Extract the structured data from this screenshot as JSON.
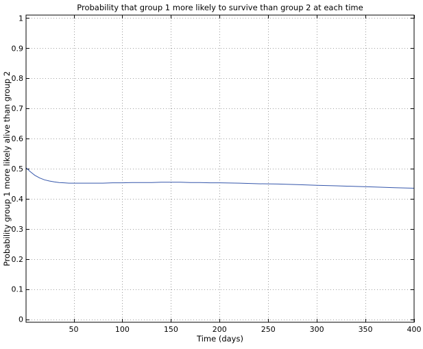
{
  "chart_data": {
    "type": "line",
    "title": "Probability that group 1 more likely to survive than group 2 at each time",
    "xlabel": "Time (days)",
    "ylabel": "Probability group 1 more likely alive than group 2",
    "xlim": [
      1,
      400
    ],
    "ylim": [
      -0.01,
      1.01
    ],
    "xticks": [
      50,
      100,
      150,
      200,
      250,
      300,
      350,
      400
    ],
    "xtick_labels": [
      "50",
      "100",
      "150",
      "200",
      "250",
      "300",
      "350",
      "400"
    ],
    "yticks": [
      0,
      0.1,
      0.2,
      0.3,
      0.4,
      0.5,
      0.6,
      0.7,
      0.8,
      0.9,
      1
    ],
    "ytick_labels": [
      "0",
      "0.1",
      "0.2",
      "0.3",
      "0.4",
      "0.5",
      "0.6",
      "0.7",
      "0.8",
      "0.9",
      "1"
    ],
    "grid": true,
    "line_color": "#3355aa",
    "series": [
      {
        "x": [
          1,
          5,
          10,
          15,
          20,
          25,
          30,
          35,
          40,
          45,
          50,
          60,
          70,
          80,
          90,
          100,
          110,
          120,
          130,
          140,
          150,
          160,
          170,
          180,
          190,
          200,
          220,
          240,
          260,
          280,
          300,
          320,
          340,
          360,
          380,
          400
        ],
        "y": [
          0.503,
          0.491,
          0.478,
          0.469,
          0.463,
          0.459,
          0.456,
          0.454,
          0.453,
          0.452,
          0.452,
          0.452,
          0.452,
          0.452,
          0.453,
          0.453,
          0.454,
          0.454,
          0.454,
          0.455,
          0.455,
          0.455,
          0.454,
          0.454,
          0.453,
          0.453,
          0.452,
          0.45,
          0.449,
          0.447,
          0.445,
          0.443,
          0.441,
          0.439,
          0.437,
          0.435
        ]
      }
    ]
  }
}
